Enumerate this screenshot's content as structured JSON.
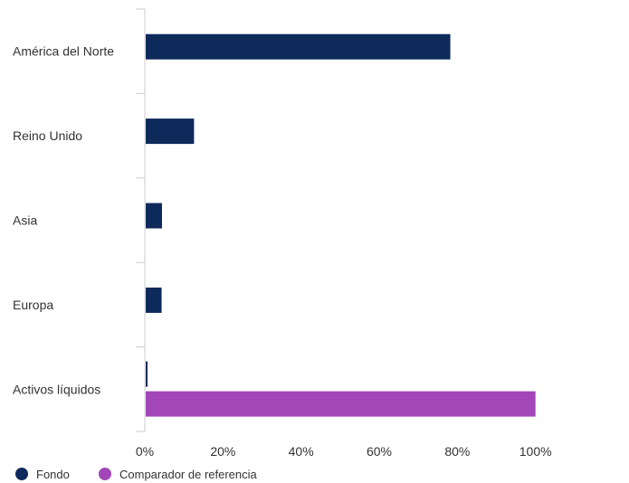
{
  "chart_data": {
    "type": "bar",
    "orientation": "horizontal",
    "categories": [
      "América del Norte",
      "Reino Unido",
      "Asia",
      "Europa",
      "Activos líquidos"
    ],
    "series": [
      {
        "name": "Fondo",
        "values": [
          78.2,
          12.6,
          4.4,
          4.3,
          0.5
        ],
        "color": "#0e2a5a"
      },
      {
        "name": "Comparador de referencia",
        "values": [
          0,
          0,
          0,
          0,
          100
        ],
        "color": "#a246b8"
      }
    ],
    "xlim": [
      0,
      120
    ],
    "xticks": [
      0,
      20,
      40,
      60,
      80,
      100
    ],
    "tick_format": "%",
    "grid": false,
    "legend_position": "bottom-left"
  }
}
